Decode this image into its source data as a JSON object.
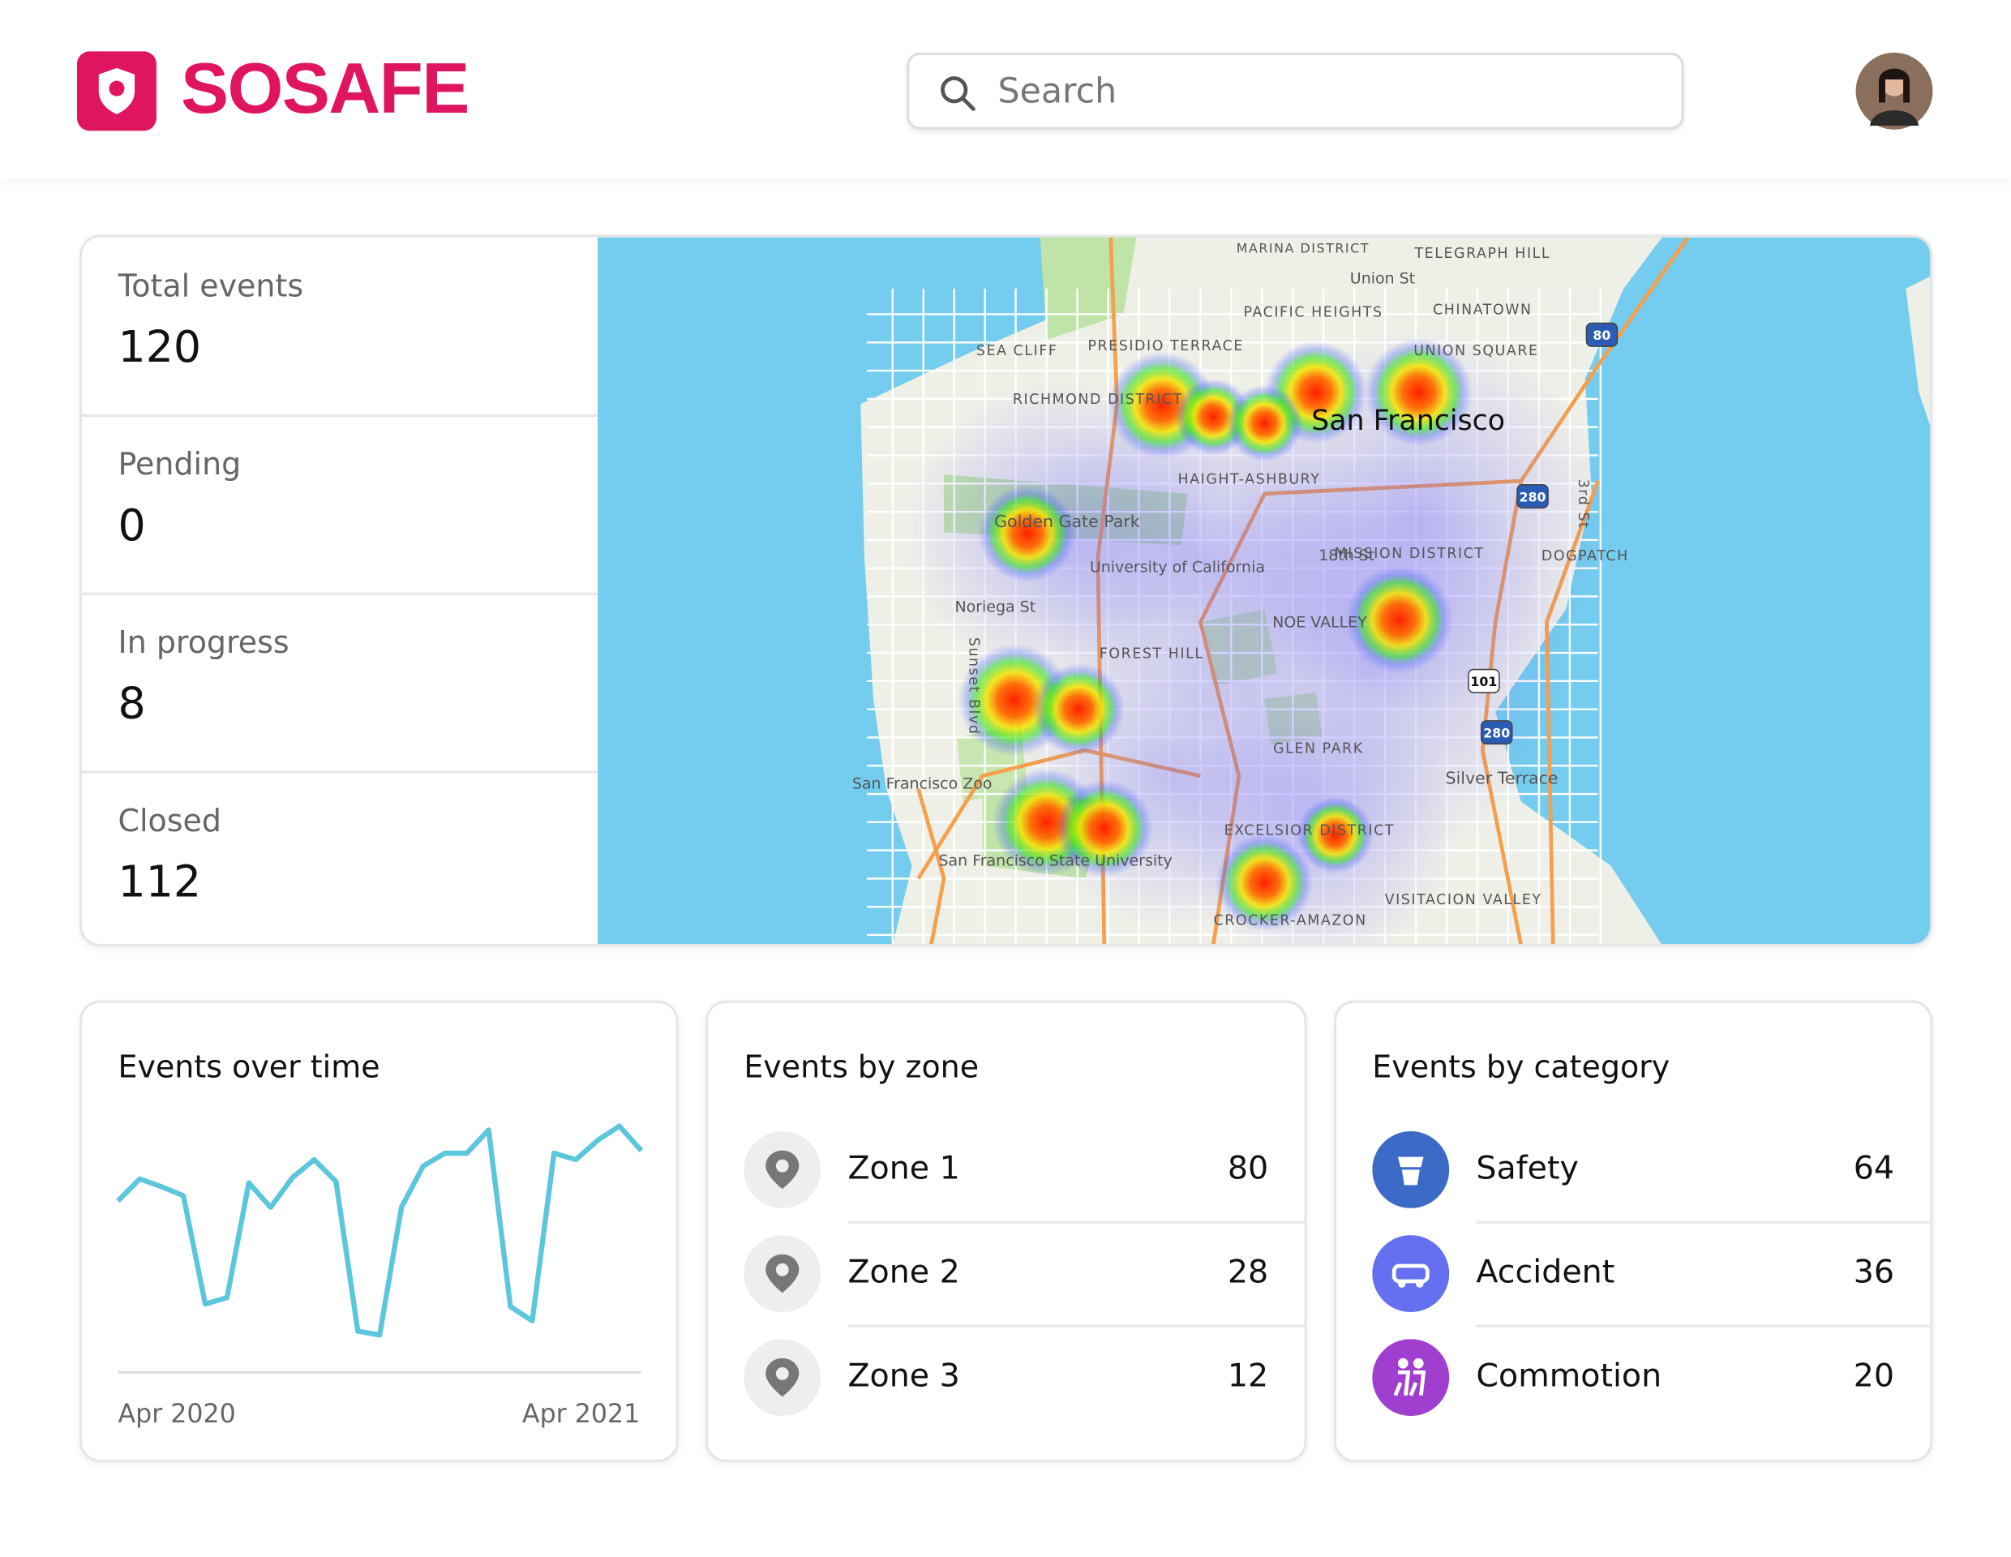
{
  "header": {
    "brand": "SOSAFE",
    "search_placeholder": "Search"
  },
  "stats": [
    {
      "label": "Total events",
      "value": 120
    },
    {
      "label": "Pending",
      "value": 0
    },
    {
      "label": "In progress",
      "value": 8
    },
    {
      "label": "Closed",
      "value": 112
    }
  ],
  "map": {
    "labels": [
      "MARINA DISTRICT",
      "Union St",
      "TELEGRAPH HILL",
      "PACIFIC HEIGHTS",
      "CHINATOWN",
      "SEA CLIFF",
      "PRESIDIO TERRACE",
      "UNION SQUARE",
      "RICHMOND DISTRICT",
      "San Francisco",
      "HAIGHT-ASHBURY",
      "Golden Gate Park",
      "University of California",
      "18th St",
      "MISSION DISTRICT",
      "DOGPATCH",
      "Noriega St",
      "NOE VALLEY",
      "FOREST HILL",
      "Sunset Blvd",
      "GLEN PARK",
      "San Francisco Zoo",
      "Silver Terrace",
      "EXCELSIOR DISTRICT",
      "San Francisco State University",
      "VISITACION VALLEY",
      "CROCKER-AMAZON",
      "3rd St"
    ],
    "shields": [
      "80",
      "280",
      "101",
      "280"
    ]
  },
  "events_over_time": {
    "title": "Events over time",
    "x_labels": [
      "Apr 2020",
      "Apr 2021"
    ],
    "values": [
      133,
      150,
      144,
      137,
      53,
      58,
      147,
      128,
      151,
      165,
      148,
      32,
      29,
      128,
      160,
      170,
      170,
      188,
      51,
      40,
      170,
      165,
      180,
      191,
      172
    ]
  },
  "events_by_zone": {
    "title": "Events by zone",
    "items": [
      {
        "name": "Zone 1",
        "value": 80
      },
      {
        "name": "Zone 2",
        "value": 28
      },
      {
        "name": "Zone 3",
        "value": 12
      }
    ]
  },
  "events_by_category": {
    "title": "Events by category",
    "items": [
      {
        "name": "Safety",
        "value": 64
      },
      {
        "name": "Accident",
        "value": 36
      },
      {
        "name": "Commotion",
        "value": 20
      }
    ]
  }
}
